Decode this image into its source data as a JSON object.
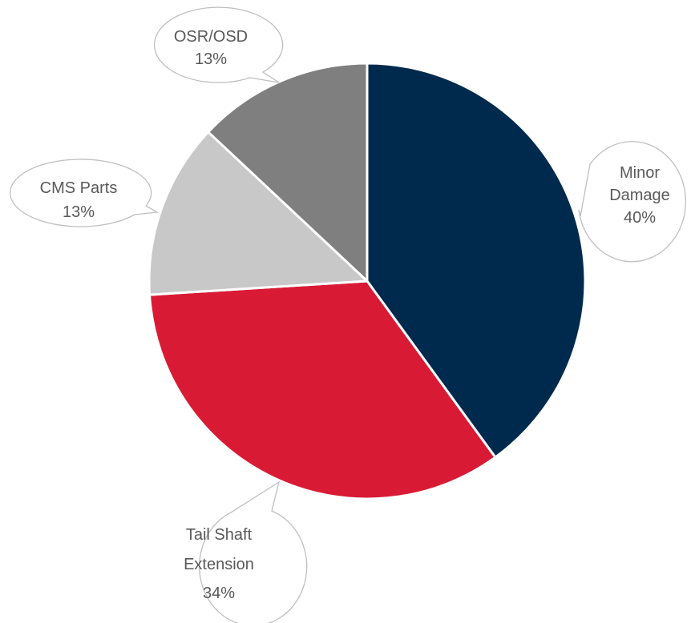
{
  "chart_data": {
    "type": "pie",
    "title": "",
    "slices": [
      {
        "label": "Minor Damage",
        "value": 40,
        "display": "40%",
        "color": "#002a4d"
      },
      {
        "label": "Tail Shaft Extension",
        "value": 34,
        "display": "34%",
        "color": "#d91a35"
      },
      {
        "label": "CMS Parts",
        "value": 13,
        "display": "13%",
        "color": "#c8c8c8"
      },
      {
        "label": "OSR/OSD",
        "value": 13,
        "display": "13%",
        "color": "#7f7f7f"
      }
    ],
    "legend": "none",
    "data_labels": "callouts"
  }
}
